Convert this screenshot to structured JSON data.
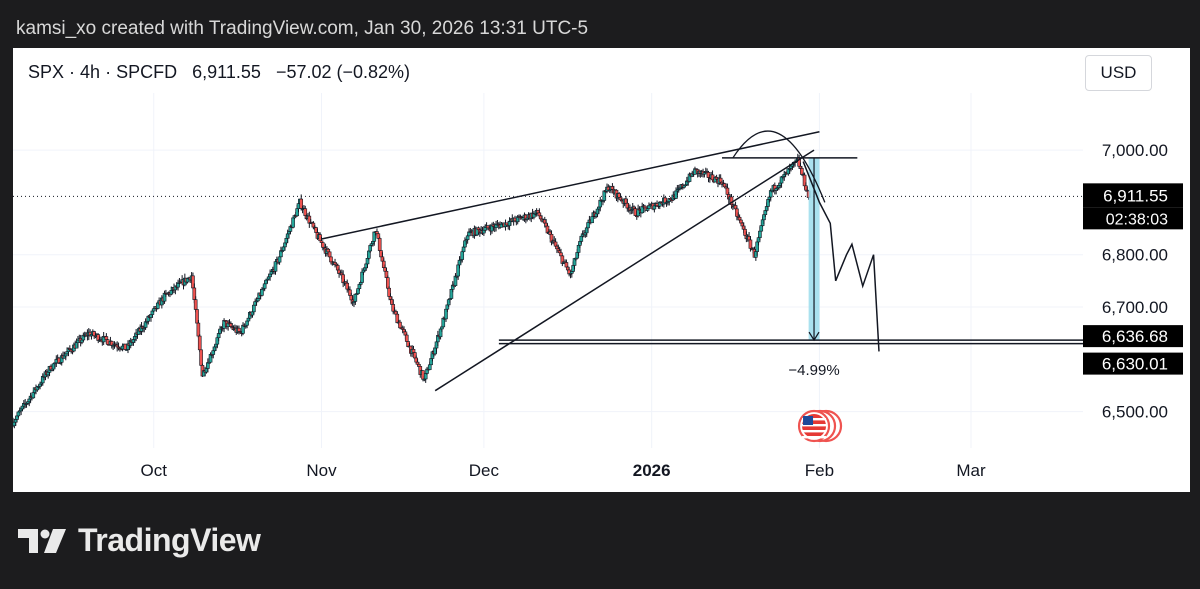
{
  "caption": "kamsi_xo created with TradingView.com, Jan 30, 2026 13:31 UTC-5",
  "header": {
    "symbol": "SPX",
    "interval": "4h",
    "source": "SPCFD",
    "price": "6,911.55",
    "change": "−57.02",
    "change_pct": "(−0.82%)"
  },
  "currency": "USD",
  "brand": "TradingView",
  "colors": {
    "up": "#26a69a",
    "down": "#ef5350",
    "projection_box": "#9bdcec",
    "price_label_bg": "#000000"
  },
  "price_labels": {
    "current": "6,911.55",
    "countdown": "02:38:03",
    "level_a": "6,636.68",
    "level_b": "6,630.01"
  },
  "measure_label": "−4.99%",
  "icons": [
    "us-flag-event-icon"
  ],
  "chart_data": {
    "type": "candlestick",
    "y_ticks": [
      {
        "label": "7,000.00",
        "value": 7000
      },
      {
        "label": "6,800.00",
        "value": 6800
      },
      {
        "label": "6,700.00",
        "value": 6700
      },
      {
        "label": "6,500.00",
        "value": 6500
      }
    ],
    "ylim": [
      6440,
      7090
    ],
    "x_ticks": [
      {
        "label": "Oct",
        "date": "2025-10-01",
        "bold": false
      },
      {
        "label": "Nov",
        "date": "2025-11-01",
        "bold": false
      },
      {
        "label": "Dec",
        "date": "2025-12-01",
        "bold": false
      },
      {
        "label": "2026",
        "date": "2026-01-01",
        "bold": true
      },
      {
        "label": "Feb",
        "date": "2026-02-01",
        "bold": false
      },
      {
        "label": "Mar",
        "date": "2026-03-01",
        "bold": false
      }
    ],
    "xlim": [
      "2025-09-05",
      "2026-03-18"
    ],
    "current_price": 6911.55,
    "horizontal_levels": [
      6636.68,
      6630.01
    ],
    "price_path": [
      [
        "2025-09-05",
        6480
      ],
      [
        "2025-09-12",
        6585
      ],
      [
        "2025-09-19",
        6650
      ],
      [
        "2025-09-26",
        6620
      ],
      [
        "2025-10-03",
        6720
      ],
      [
        "2025-10-08",
        6760
      ],
      [
        "2025-10-10",
        6570
      ],
      [
        "2025-10-14",
        6670
      ],
      [
        "2025-10-17",
        6650
      ],
      [
        "2025-10-24",
        6790
      ],
      [
        "2025-10-28",
        6900
      ],
      [
        "2025-10-31",
        6840
      ],
      [
        "2025-11-04",
        6770
      ],
      [
        "2025-11-07",
        6710
      ],
      [
        "2025-11-11",
        6850
      ],
      [
        "2025-11-14",
        6700
      ],
      [
        "2025-11-17",
        6630
      ],
      [
        "2025-11-20",
        6560
      ],
      [
        "2025-11-24",
        6690
      ],
      [
        "2025-11-28",
        6840
      ],
      [
        "2025-12-05",
        6860
      ],
      [
        "2025-12-11",
        6880
      ],
      [
        "2025-12-17",
        6760
      ],
      [
        "2025-12-19",
        6830
      ],
      [
        "2025-12-24",
        6930
      ],
      [
        "2025-12-29",
        6880
      ],
      [
        "2026-01-05",
        6910
      ],
      [
        "2026-01-09",
        6960
      ],
      [
        "2026-01-14",
        6940
      ],
      [
        "2026-01-20",
        6800
      ],
      [
        "2026-01-23",
        6920
      ],
      [
        "2026-01-28",
        6980
      ],
      [
        "2026-01-30",
        6911.55
      ]
    ],
    "drawn_lines": [
      {
        "name": "wedge-upper-line",
        "points": [
          [
            "2025-11-01",
            6830
          ],
          [
            "2026-02-01",
            7035
          ]
        ]
      },
      {
        "name": "wedge-lower-line",
        "points": [
          [
            "2025-11-22",
            6540
          ],
          [
            "2026-01-31",
            7000
          ]
        ]
      },
      {
        "name": "top-horizontal-line",
        "points": [
          [
            "2026-01-14",
            6985
          ],
          [
            "2026-02-08",
            6985
          ]
        ]
      },
      {
        "name": "projection-path",
        "points": [
          [
            "2026-01-29",
            6978
          ],
          [
            "2026-02-01",
            6900
          ],
          [
            "2026-02-03",
            6860
          ],
          [
            "2026-02-04",
            6750
          ],
          [
            "2026-02-06",
            6800
          ],
          [
            "2026-02-07",
            6820
          ],
          [
            "2026-02-09",
            6740
          ],
          [
            "2026-02-11",
            6800
          ],
          [
            "2026-02-12",
            6615
          ]
        ]
      }
    ],
    "measure": {
      "from": 6985,
      "to": 6636.68,
      "label": "−4.99%",
      "start": "2026-01-30",
      "end": "2026-02-01"
    }
  }
}
